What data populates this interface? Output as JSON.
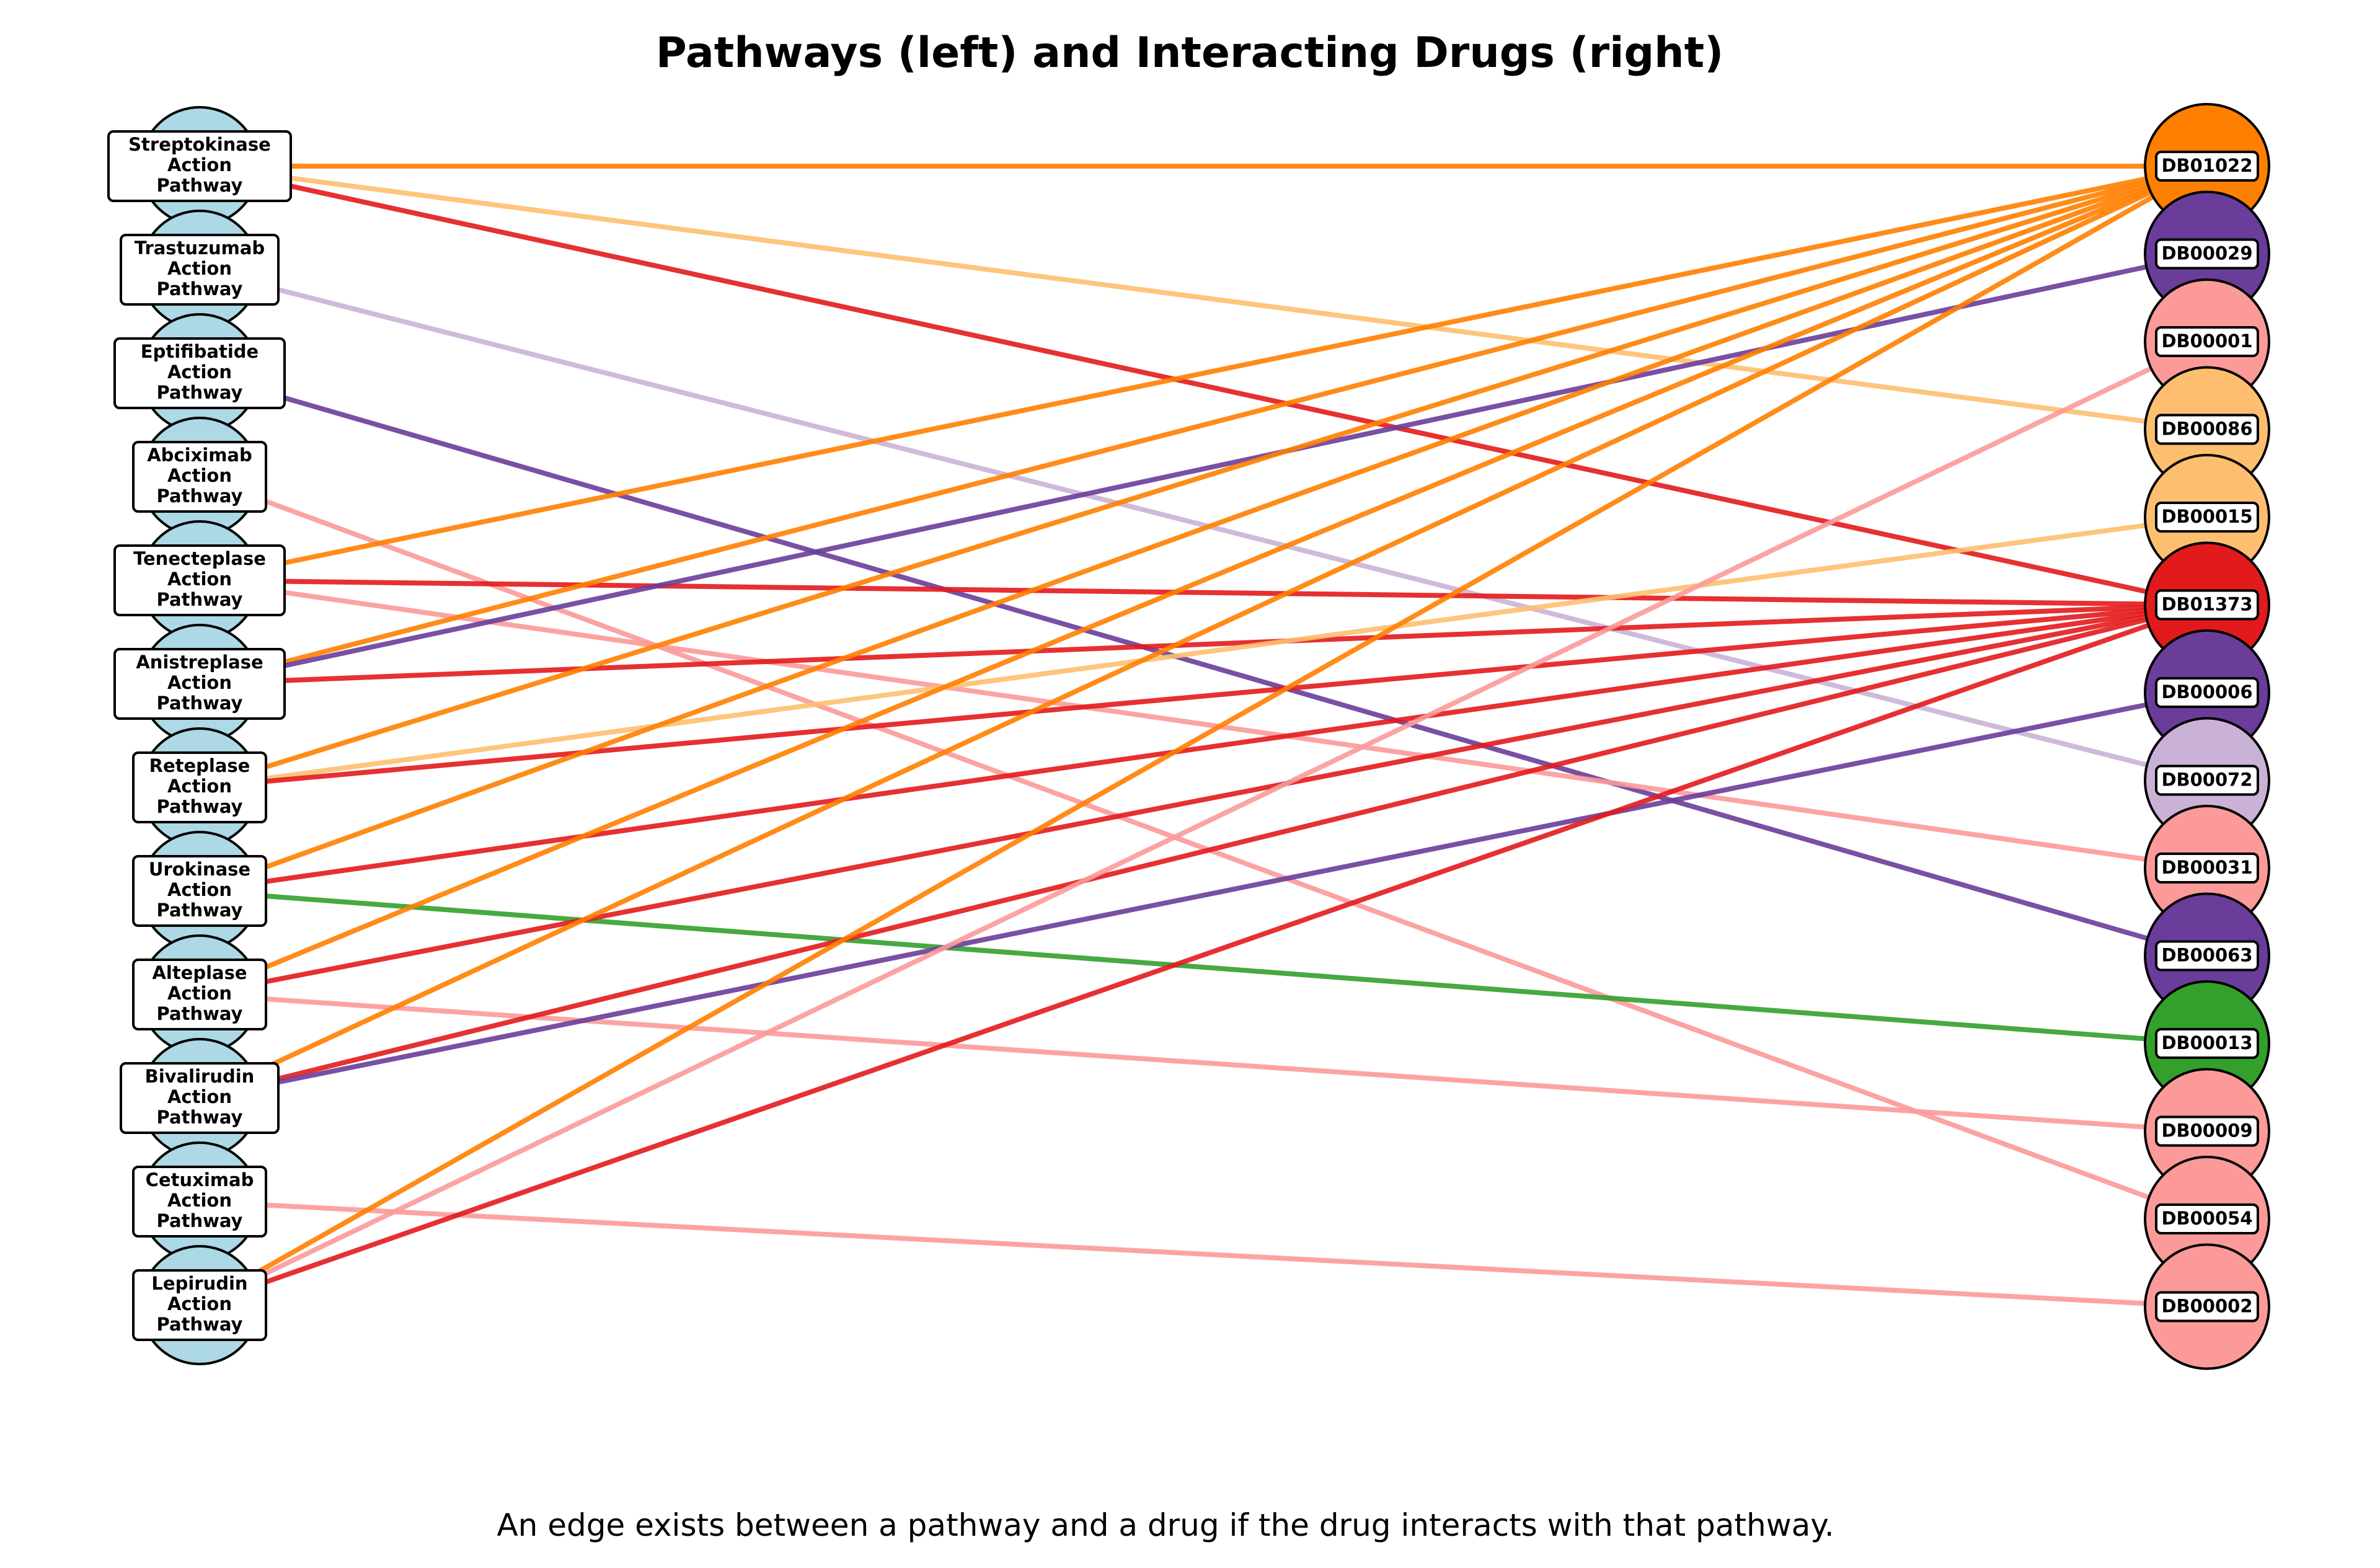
{
  "title": "Pathways (left) and Interacting Drugs (right)",
  "caption": "An edge exists between a pathway and a drug if the drug interacts with that pathway.",
  "colors": {
    "pathway_fill": "#add8e6",
    "orange": "#ff7f00",
    "purple": "#6a3d9a",
    "light_red": "#fb9a99",
    "light_orange": "#fdbf6f",
    "red": "#e31a1c",
    "lavender": "#cab2d6",
    "green": "#33a02c"
  },
  "pathways": [
    {
      "id": "streptokinase",
      "label": [
        "Streptokinase",
        "Action",
        "Pathway"
      ]
    },
    {
      "id": "trastuzumab",
      "label": [
        "Trastuzumab",
        "Action",
        "Pathway"
      ]
    },
    {
      "id": "eptifibatide",
      "label": [
        "Eptifibatide",
        "Action",
        "Pathway"
      ]
    },
    {
      "id": "abciximab",
      "label": [
        "Abciximab",
        "Action",
        "Pathway"
      ]
    },
    {
      "id": "tenecteplase",
      "label": [
        "Tenecteplase",
        "Action",
        "Pathway"
      ]
    },
    {
      "id": "anistreplase",
      "label": [
        "Anistreplase",
        "Action",
        "Pathway"
      ]
    },
    {
      "id": "reteplase",
      "label": [
        "Reteplase",
        "Action",
        "Pathway"
      ]
    },
    {
      "id": "urokinase",
      "label": [
        "Urokinase",
        "Action",
        "Pathway"
      ]
    },
    {
      "id": "alteplase",
      "label": [
        "Alteplase",
        "Action",
        "Pathway"
      ]
    },
    {
      "id": "bivalirudin",
      "label": [
        "Bivalirudin",
        "Action",
        "Pathway"
      ]
    },
    {
      "id": "cetuximab",
      "label": [
        "Cetuximab",
        "Action",
        "Pathway"
      ]
    },
    {
      "id": "lepirudin",
      "label": [
        "Lepirudin",
        "Action",
        "Pathway"
      ]
    }
  ],
  "drugs": [
    {
      "id": "DB01022",
      "label": "DB01022",
      "color": "#ff7f00"
    },
    {
      "id": "DB00029",
      "label": "DB00029",
      "color": "#6a3d9a"
    },
    {
      "id": "DB00001",
      "label": "DB00001",
      "color": "#fb9a99"
    },
    {
      "id": "DB00086",
      "label": "DB00086",
      "color": "#fdbf6f"
    },
    {
      "id": "DB00015",
      "label": "DB00015",
      "color": "#fdbf6f"
    },
    {
      "id": "DB01373",
      "label": "DB01373",
      "color": "#e31a1c"
    },
    {
      "id": "DB00006",
      "label": "DB00006",
      "color": "#6a3d9a"
    },
    {
      "id": "DB00072",
      "label": "DB00072",
      "color": "#cab2d6"
    },
    {
      "id": "DB00031",
      "label": "DB00031",
      "color": "#fb9a99"
    },
    {
      "id": "DB00063",
      "label": "DB00063",
      "color": "#6a3d9a"
    },
    {
      "id": "DB00013",
      "label": "DB00013",
      "color": "#33a02c"
    },
    {
      "id": "DB00009",
      "label": "DB00009",
      "color": "#fb9a99"
    },
    {
      "id": "DB00054",
      "label": "DB00054",
      "color": "#fb9a99"
    },
    {
      "id": "DB00002",
      "label": "DB00002",
      "color": "#fb9a99"
    }
  ],
  "edges": [
    {
      "pathway": "streptokinase",
      "drug": "DB01022"
    },
    {
      "pathway": "streptokinase",
      "drug": "DB00086"
    },
    {
      "pathway": "streptokinase",
      "drug": "DB01373"
    },
    {
      "pathway": "trastuzumab",
      "drug": "DB00072"
    },
    {
      "pathway": "eptifibatide",
      "drug": "DB00063"
    },
    {
      "pathway": "abciximab",
      "drug": "DB00054"
    },
    {
      "pathway": "tenecteplase",
      "drug": "DB01022"
    },
    {
      "pathway": "tenecteplase",
      "drug": "DB01373"
    },
    {
      "pathway": "tenecteplase",
      "drug": "DB00031"
    },
    {
      "pathway": "anistreplase",
      "drug": "DB01022"
    },
    {
      "pathway": "anistreplase",
      "drug": "DB00029"
    },
    {
      "pathway": "anistreplase",
      "drug": "DB01373"
    },
    {
      "pathway": "reteplase",
      "drug": "DB01022"
    },
    {
      "pathway": "reteplase",
      "drug": "DB00015"
    },
    {
      "pathway": "reteplase",
      "drug": "DB01373"
    },
    {
      "pathway": "urokinase",
      "drug": "DB01022"
    },
    {
      "pathway": "urokinase",
      "drug": "DB01373"
    },
    {
      "pathway": "urokinase",
      "drug": "DB00013"
    },
    {
      "pathway": "alteplase",
      "drug": "DB01022"
    },
    {
      "pathway": "alteplase",
      "drug": "DB01373"
    },
    {
      "pathway": "alteplase",
      "drug": "DB00009"
    },
    {
      "pathway": "bivalirudin",
      "drug": "DB01022"
    },
    {
      "pathway": "bivalirudin",
      "drug": "DB01373"
    },
    {
      "pathway": "bivalirudin",
      "drug": "DB00006"
    },
    {
      "pathway": "cetuximab",
      "drug": "DB00002"
    },
    {
      "pathway": "lepirudin",
      "drug": "DB01022"
    },
    {
      "pathway": "lepirudin",
      "drug": "DB00001"
    },
    {
      "pathway": "lepirudin",
      "drug": "DB01373"
    }
  ]
}
